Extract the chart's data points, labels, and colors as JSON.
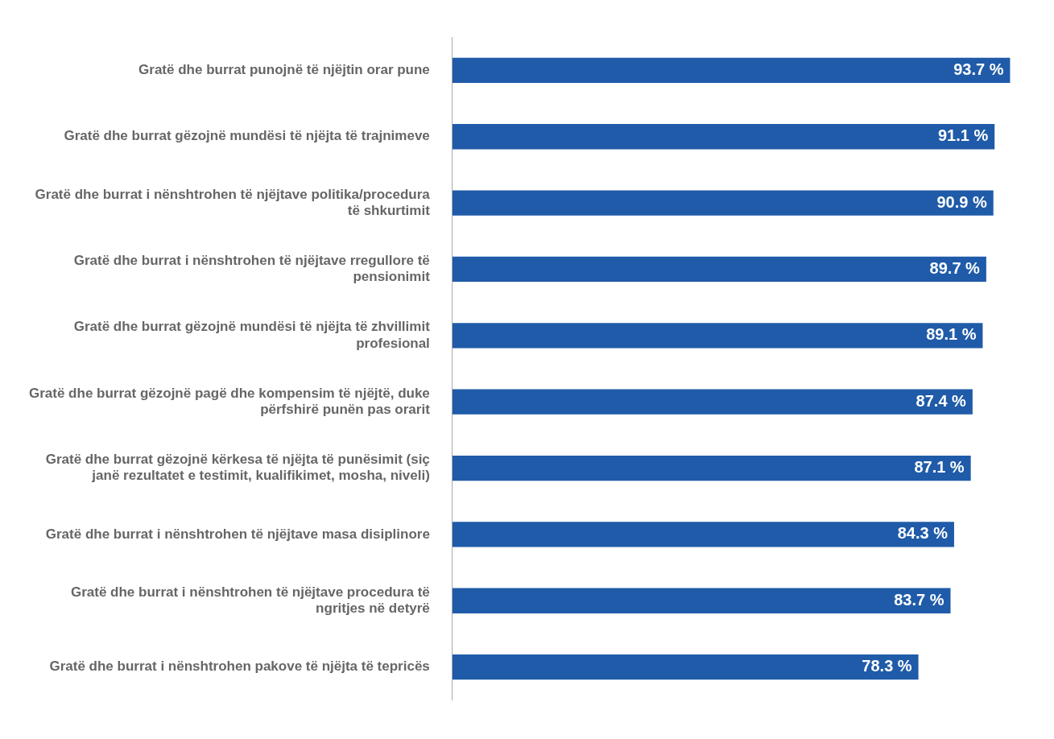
{
  "chart_data": {
    "type": "bar",
    "orientation": "horizontal",
    "categories": [
      "Gratë dhe burrat punojnë të njëjtin orar pune",
      "Gratë dhe burrat gëzojnë mundësi të njëjta të trajnimeve",
      "Gratë dhe burrat i nënshtrohen të njëjtave politika/procedura të shkurtimit",
      "Gratë dhe burrat i nënshtrohen të njëjtave rregullore të pensionimit",
      "Gratë dhe burrat gëzojnë mundësi të njëjta të zhvillimit profesional",
      "Gratë dhe burrat gëzojnë pagë dhe kompensim të njëjtë, duke përfshirë punën pas orarit",
      "Gratë dhe burrat gëzojnë kërkesa të njëjta të punësimit (siç janë rezultatet e testimit, kualifikimet, mosha, niveli)",
      "Gratë dhe burrat i nënshtrohen të njëjtave masa disiplinore",
      "Gratë dhe burrat i nënshtrohen të njëjtave procedura të ngritjes në detyrë",
      "Gratë dhe burrat i nënshtrohen pakove të njëjta të tepricës"
    ],
    "values": [
      93.7,
      91.1,
      90.9,
      89.7,
      89.1,
      87.4,
      87.1,
      84.3,
      83.7,
      78.3
    ],
    "value_labels": [
      "93.7 %",
      "91.1 %",
      "90.9 %",
      "89.7 %",
      "89.1 %",
      "87.4 %",
      "87.1 %",
      "84.3 %",
      "83.7 %",
      "78.3 %"
    ],
    "color": "#1f5ba8",
    "tick_labels": "y",
    "legend": false
  }
}
